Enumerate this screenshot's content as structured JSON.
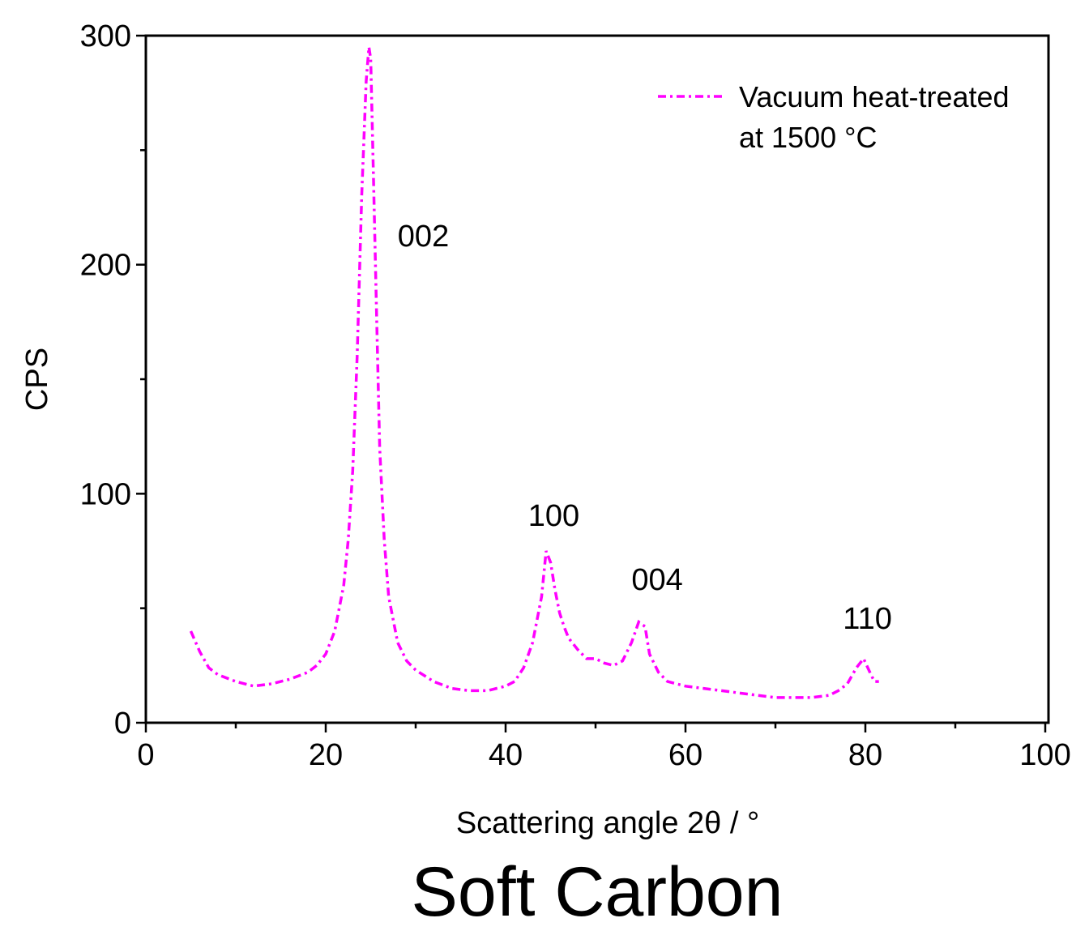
{
  "chart_data": {
    "type": "line",
    "title": "Soft Carbon",
    "xlabel": "Scattering angle 2θ / °",
    "ylabel": "CPS",
    "xlim": [
      0,
      100
    ],
    "ylim": [
      0,
      300
    ],
    "x_ticks": [
      "0",
      "20",
      "40",
      "60",
      "80",
      "100"
    ],
    "y_ticks": [
      "0",
      "100",
      "200",
      "300"
    ],
    "grid": false,
    "legend": {
      "position": "top-right",
      "lines": [
        "Vacuum heat-treated",
        "at 1500 °C"
      ]
    },
    "series": [
      {
        "name": "Vacuum heat-treated at 1500 °C",
        "color": "#ff00ff",
        "line_style": "dash-dot",
        "x": [
          5,
          6,
          7,
          8,
          10,
          12,
          14,
          16,
          18,
          19,
          20,
          21,
          22,
          22.5,
          23,
          23.5,
          24,
          24.5,
          24.8,
          25,
          25.3,
          25.7,
          26,
          26.5,
          27,
          28,
          29,
          30,
          32,
          34,
          36,
          38,
          40,
          41,
          42,
          43,
          44,
          44.5,
          45,
          45.5,
          46,
          46.5,
          47,
          48,
          49,
          50,
          51,
          52,
          53,
          54,
          54.8,
          55.5,
          56,
          57,
          58,
          60,
          62,
          64,
          66,
          68,
          70,
          72,
          74,
          76,
          77,
          78,
          79,
          79.8,
          80.5,
          81,
          81.5
        ],
        "values": [
          40,
          31,
          24,
          21,
          18,
          16,
          17,
          19,
          22,
          25,
          30,
          40,
          60,
          80,
          110,
          160,
          230,
          280,
          295,
          290,
          240,
          170,
          120,
          80,
          55,
          35,
          27,
          23,
          18,
          15,
          14,
          14,
          16,
          18,
          24,
          35,
          55,
          75,
          70,
          58,
          48,
          42,
          37,
          32,
          28,
          28,
          26,
          25,
          27,
          35,
          44,
          42,
          30,
          22,
          18,
          16,
          15,
          14,
          13,
          12,
          11,
          11,
          11,
          12,
          14,
          17,
          24,
          28,
          22,
          18,
          18
        ]
      }
    ],
    "annotations": [
      {
        "text": "002",
        "x": 28,
        "y": 208
      },
      {
        "text": "100",
        "x": 42.5,
        "y": 86
      },
      {
        "text": "004",
        "x": 54,
        "y": 58
      },
      {
        "text": "110",
        "x": 77.5,
        "y": 41
      }
    ]
  }
}
